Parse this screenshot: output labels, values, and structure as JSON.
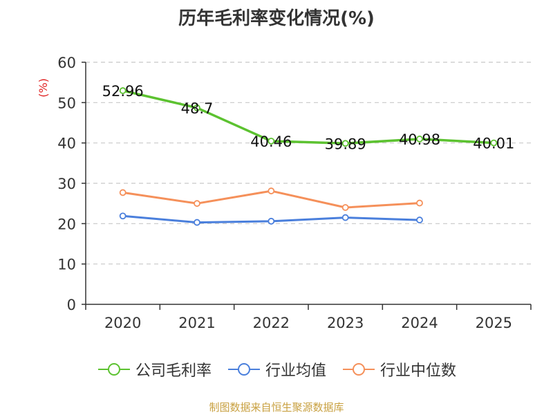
{
  "chart_data": {
    "type": "line",
    "title": "历年毛利率变化情况(%)",
    "ylabel": "(%)",
    "xlabel": "",
    "categories": [
      "2020",
      "2021",
      "2022",
      "2023",
      "2024",
      "2025"
    ],
    "yticks": [
      "0",
      "10",
      "20",
      "30",
      "40",
      "50",
      "60"
    ],
    "ylim": [
      0,
      60
    ],
    "grid": "horizontal dashed",
    "legend_position": "bottom",
    "series": [
      {
        "name": "公司毛利率",
        "color": "#5cc230",
        "values": [
          52.96,
          48.7,
          40.46,
          39.89,
          40.98,
          40.01
        ],
        "labels": [
          "52.96",
          "48.7",
          "40.46",
          "39.89",
          "40.98",
          "40.01"
        ]
      },
      {
        "name": "行业均值",
        "color": "#4a7fdc",
        "values": [
          21.9,
          20.3,
          20.6,
          21.5,
          20.9,
          null
        ]
      },
      {
        "name": "行业中位数",
        "color": "#f5905a",
        "values": [
          27.7,
          25.0,
          28.1,
          24.0,
          25.1,
          null
        ]
      }
    ]
  },
  "ylabel_color": "#e02020",
  "source_text": "制图数据来自恒生聚源数据库",
  "source_color": "#c8a040"
}
